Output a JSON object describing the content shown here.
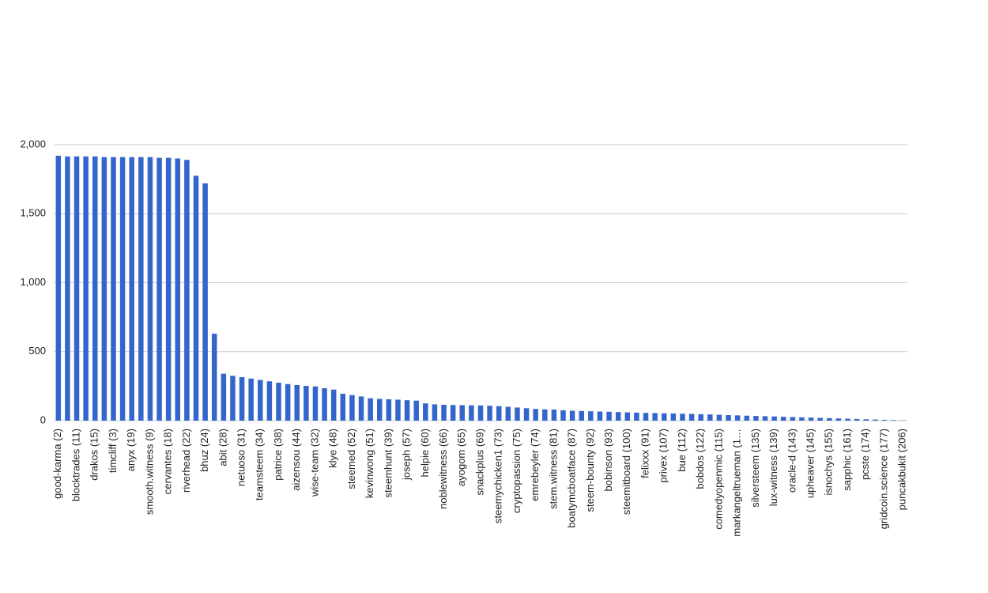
{
  "chart_data": {
    "type": "bar",
    "color": "#3366cc",
    "grid": true,
    "categories": [
      "good-karma (2)",
      null,
      "blocktrades (11)",
      null,
      "drakos (15)",
      null,
      "timcliff (3)",
      null,
      "anyx (19)",
      null,
      "smooth.witness (9)",
      null,
      "cervantes (18)",
      null,
      "riverhead (22)",
      null,
      "bhuz (24)",
      null,
      "abit (28)",
      null,
      "netuoso (31)",
      null,
      "teamsteem (34)",
      null,
      "patrice (38)",
      null,
      "aizensou (44)",
      null,
      "wise-team (32)",
      null,
      "klye (48)",
      null,
      "steemed (52)",
      null,
      "kevinwong (51)",
      null,
      "steemhunt (39)",
      null,
      "joseph (57)",
      null,
      "helpie (60)",
      null,
      "noblewitness (66)",
      null,
      "ayogom (65)",
      null,
      "snackplus (69)",
      null,
      "steemychicken1 (73)",
      null,
      "cryptopassion (75)",
      null,
      "emrebeyler (74)",
      null,
      "stem.witness (81)",
      null,
      "boatymcboatface (87)",
      null,
      "steem-bounty (92)",
      null,
      "bobinson (93)",
      null,
      "steemitboard (100)",
      null,
      "felixxx (91)",
      null,
      "privex (107)",
      null,
      "bue (112)",
      null,
      "bobdos (122)",
      null,
      "comedyopenmic (115)",
      null,
      "markangeltrueman (1…",
      null,
      "silversteem (135)",
      null,
      "lux-witness (139)",
      null,
      "oracle-d (143)",
      null,
      "upheaver (145)",
      null,
      "isnochys (155)",
      null,
      "sapphic (161)",
      null,
      "pcste (174)",
      null,
      "gridcoin.science (177)",
      null,
      "puncakbukit (206)"
    ],
    "values": [
      1920,
      1915,
      1915,
      1915,
      1915,
      1910,
      1910,
      1910,
      1910,
      1910,
      1910,
      1905,
      1905,
      1900,
      1890,
      1775,
      1720,
      630,
      340,
      325,
      315,
      305,
      295,
      285,
      275,
      265,
      258,
      252,
      248,
      235,
      225,
      195,
      185,
      175,
      162,
      158,
      155,
      152,
      148,
      145,
      125,
      118,
      115,
      113,
      112,
      111,
      110,
      108,
      105,
      100,
      95,
      90,
      85,
      82,
      80,
      75,
      72,
      70,
      68,
      66,
      64,
      62,
      60,
      58,
      56,
      55,
      53,
      52,
      50,
      49,
      47,
      45,
      43,
      40,
      38,
      36,
      34,
      32,
      30,
      28,
      26,
      24,
      22,
      20,
      18,
      16,
      14,
      12,
      10,
      8,
      6,
      4,
      2
    ],
    "ylim": [
      0,
      2000
    ],
    "yticks": [
      0,
      500,
      {
        "value": 1000,
        "label": "1,000"
      },
      {
        "value": 1500,
        "label": "1,500"
      },
      {
        "value": 2000,
        "label": "2,000"
      }
    ]
  }
}
